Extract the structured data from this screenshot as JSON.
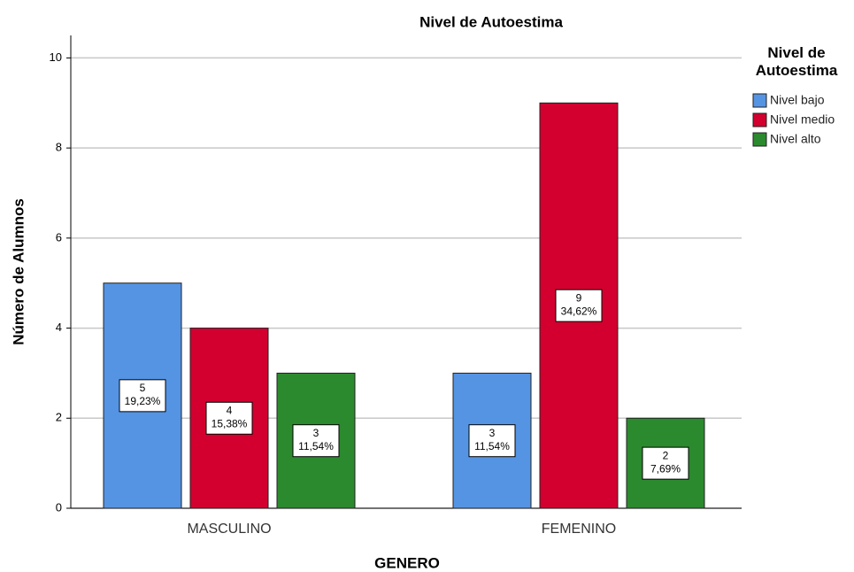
{
  "chart_data": {
    "type": "bar",
    "title": "Nivel de Autoestima",
    "x_label": "GENERO",
    "y_label": "Número de Alumnos",
    "legend_title": "Nivel de Autoestima",
    "legend_position": "right",
    "categories": [
      "MASCULINO",
      "FEMENINO"
    ],
    "series": [
      {
        "name": "Nivel bajo",
        "color": "#5594e3",
        "values": [
          5,
          3
        ],
        "percent_labels": [
          "19,23%",
          "11,54%"
        ]
      },
      {
        "name": "Nivel medio",
        "color": "#d3002f",
        "values": [
          4,
          9
        ],
        "percent_labels": [
          "15,38%",
          "34,62%"
        ]
      },
      {
        "name": "Nivel alto",
        "color": "#2b8a2e",
        "values": [
          3,
          2
        ],
        "percent_labels": [
          "11,54%",
          "7,69%"
        ]
      }
    ],
    "ylim": [
      0,
      10.5
    ],
    "yticks": [
      0,
      2,
      4,
      6,
      8,
      10
    ],
    "grid": true
  }
}
